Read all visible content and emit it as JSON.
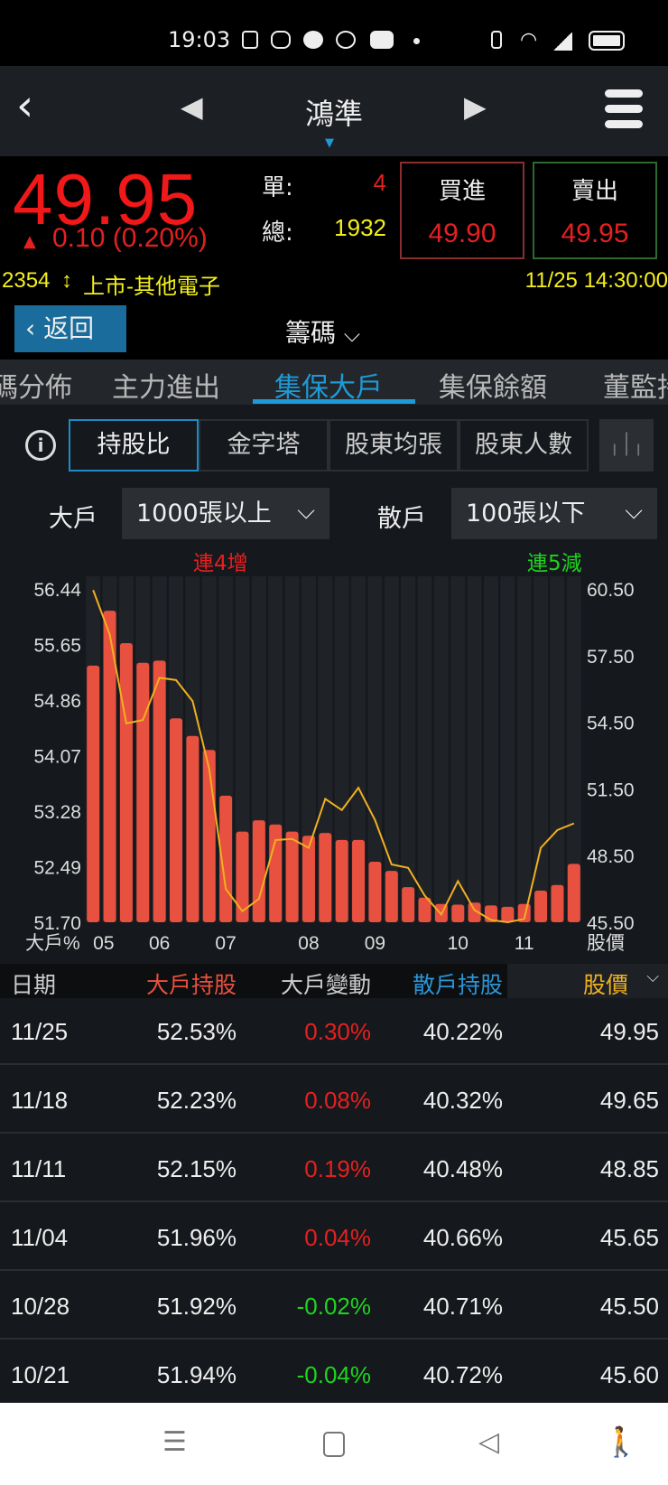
{
  "status_bar": {
    "time": "19:03",
    "icons": [
      "notes-icon",
      "discord-icon",
      "line-icon",
      "gomaji-icon",
      "youtube-icon",
      "dot-icon",
      "vibrate-icon",
      "wifi-icon",
      "signal-icon",
      "battery-icon"
    ]
  },
  "header": {
    "title": "鴻準"
  },
  "quote": {
    "price": "49.95",
    "change": "0.10 (0.20%)",
    "single_label": "單:",
    "single_value": "4",
    "total_label": "總:",
    "total_value": "1932",
    "buy_label": "買進",
    "buy_price": "49.90",
    "sell_label": "賣出",
    "sell_price": "49.95",
    "code": "2354",
    "market": "上市-其他電子",
    "datetime": "11/25 14:30:00"
  },
  "nav": {
    "back_label": "返回",
    "section": "籌碼"
  },
  "tabs": [
    {
      "label": "碼分佈"
    },
    {
      "label": "主力進出"
    },
    {
      "label": "集保大戶",
      "active": true
    },
    {
      "label": "集保餘額"
    },
    {
      "label": "董監持"
    }
  ],
  "segments": [
    {
      "label": "持股比",
      "active": true
    },
    {
      "label": "金字塔"
    },
    {
      "label": "股東均張"
    },
    {
      "label": "股東人數"
    }
  ],
  "filters": {
    "big_label": "大戶",
    "big_value": "1000張以上",
    "small_label": "散戶",
    "small_value": "100張以下"
  },
  "streaks": {
    "big": "連4增",
    "small": "連5減"
  },
  "colors": {
    "up": "#e52020",
    "down": "#1fd41f",
    "bar": "#e8503f",
    "price_line": "#f0b020",
    "accent": "#1e9ad6"
  },
  "chart_data": {
    "type": "bar+line",
    "ylabel": "大戶%",
    "y2label": "股價",
    "ylim": [
      51.7,
      56.44
    ],
    "y2lim": [
      45.5,
      60.5
    ],
    "yticks": [
      "56.44",
      "55.65",
      "54.86",
      "54.07",
      "53.28",
      "52.49",
      "51.70"
    ],
    "y2ticks": [
      "60.50",
      "57.50",
      "54.50",
      "51.50",
      "48.50",
      "45.50"
    ],
    "xticks": [
      {
        "label": "05",
        "index": 0
      },
      {
        "label": "06",
        "index": 4
      },
      {
        "label": "07",
        "index": 8
      },
      {
        "label": "08",
        "index": 13
      },
      {
        "label": "09",
        "index": 17
      },
      {
        "label": "10",
        "index": 22
      },
      {
        "label": "11",
        "index": 26
      }
    ],
    "series": [
      {
        "name": "大戶持股",
        "type": "bar",
        "values": [
          55.35,
          56.13,
          55.67,
          55.39,
          55.42,
          54.6,
          54.35,
          54.15,
          53.5,
          52.99,
          53.15,
          53.09,
          52.99,
          52.93,
          52.97,
          52.87,
          52.87,
          52.56,
          52.43,
          52.2,
          52.05,
          51.96,
          51.95,
          51.98,
          51.94,
          51.92,
          51.96,
          52.15,
          52.23,
          52.53
        ]
      },
      {
        "name": "股價",
        "type": "line",
        "values": [
          60.45,
          58.45,
          54.45,
          54.6,
          56.5,
          56.4,
          55.45,
          52.4,
          47.0,
          46.0,
          46.55,
          49.2,
          49.25,
          48.85,
          51.05,
          50.55,
          51.55,
          50.1,
          48.1,
          47.95,
          46.7,
          45.85,
          47.35,
          46.05,
          45.6,
          45.5,
          45.65,
          48.85,
          49.65,
          49.95
        ]
      }
    ]
  },
  "table": {
    "headers": [
      "日期",
      "大戶持股",
      "大戶變動",
      "散戶持股",
      "股價"
    ],
    "rows": [
      [
        "11/25",
        "52.53%",
        "0.30%",
        "40.22%",
        "49.95"
      ],
      [
        "11/18",
        "52.23%",
        "0.08%",
        "40.32%",
        "49.65"
      ],
      [
        "11/11",
        "52.15%",
        "0.19%",
        "40.48%",
        "48.85"
      ],
      [
        "11/04",
        "51.96%",
        "0.04%",
        "40.66%",
        "45.65"
      ],
      [
        "10/28",
        "51.92%",
        "-0.02%",
        "40.71%",
        "45.50"
      ],
      [
        "10/21",
        "51.94%",
        "-0.04%",
        "40.72%",
        "45.60"
      ]
    ]
  }
}
